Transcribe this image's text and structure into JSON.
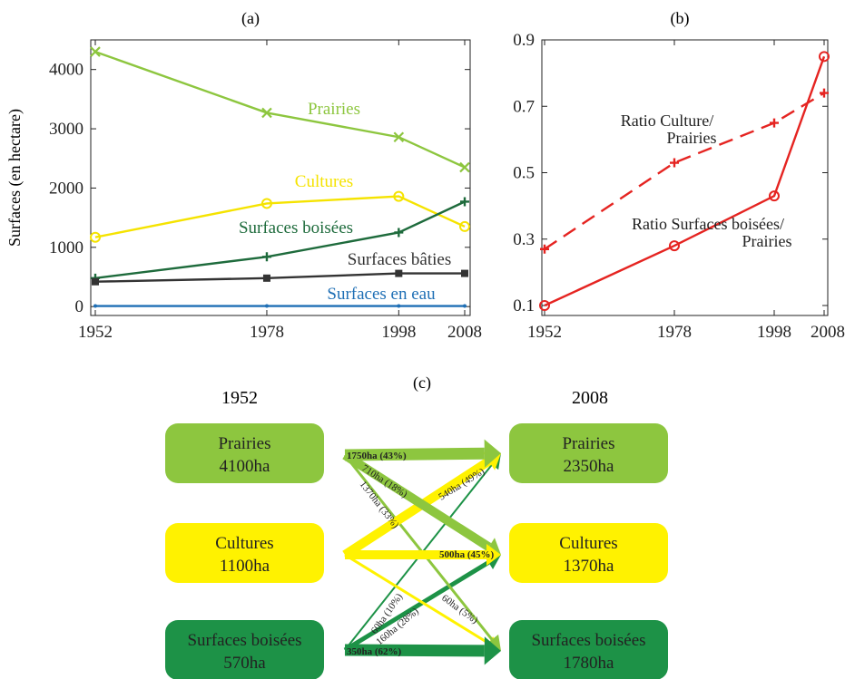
{
  "chart_data": [
    {
      "panel": "(a)",
      "type": "line",
      "ylabel": "Surfaces (en hectare)",
      "x": [
        1952,
        1978,
        1998,
        2008
      ],
      "xticks": [
        "1952",
        "1978",
        "1998",
        "2008"
      ],
      "yticks": [
        "0",
        "1000",
        "2000",
        "3000",
        "4000"
      ],
      "xlim": [
        1952,
        2008
      ],
      "ylim": [
        -150,
        4500
      ],
      "series": [
        {
          "name": "Prairies",
          "color": "#8dc63f",
          "marker": "x",
          "values": [
            4300,
            3270,
            2860,
            2350
          ]
        },
        {
          "name": "Cultures",
          "color": "#f5e300",
          "marker": "o",
          "values": [
            1170,
            1740,
            1860,
            1350
          ]
        },
        {
          "name": "Surfaces boisées",
          "color": "#1e6b3c",
          "marker": "+",
          "values": [
            480,
            840,
            1250,
            1770
          ]
        },
        {
          "name": "Surfaces bâties",
          "color": "#333333",
          "marker": "s",
          "values": [
            420,
            480,
            560,
            560
          ]
        },
        {
          "name": "Surfaces en eau",
          "color": "#1f6fb5",
          "marker": ".",
          "values": [
            10,
            10,
            10,
            10
          ]
        }
      ]
    },
    {
      "panel": "(b)",
      "type": "line",
      "x": [
        1952,
        1978,
        1998,
        2008
      ],
      "xticks": [
        "1952",
        "1978",
        "1998",
        "2008"
      ],
      "yticks": [
        "0.1",
        "0.3",
        "0.5",
        "0.7",
        "0.9"
      ],
      "xlim": [
        1952,
        2008
      ],
      "ylim": [
        0.07,
        0.9
      ],
      "series": [
        {
          "name": "Ratio Culture/ Prairies",
          "label_lines": [
            "Ratio Culture/",
            "Prairies"
          ],
          "color": "#e52421",
          "dash": true,
          "marker": "+",
          "values": [
            0.27,
            0.53,
            0.65,
            0.74
          ]
        },
        {
          "name": "Ratio Surfaces boisées/ Prairies",
          "label_lines": [
            "Ratio Surfaces boisées/",
            "Prairies"
          ],
          "color": "#e52421",
          "dash": false,
          "marker": "o",
          "values": [
            0.1,
            0.28,
            0.43,
            0.85
          ]
        }
      ]
    },
    {
      "panel": "(c)",
      "type": "diagram",
      "left_year": "1952",
      "right_year": "2008",
      "left_boxes": [
        {
          "name": "Prairies",
          "value": "4100ha",
          "color": "#8dc63f"
        },
        {
          "name": "Cultures",
          "value": "1100ha",
          "color": "#fff200"
        },
        {
          "name": "Surfaces boisées",
          "value": "570ha",
          "color": "#1d9247"
        }
      ],
      "right_boxes": [
        {
          "name": "Prairies",
          "value": "2350ha",
          "color": "#8dc63f"
        },
        {
          "name": "Cultures",
          "value": "1370ha",
          "color": "#fff200"
        },
        {
          "name": "Surfaces boisées",
          "value": "1780ha",
          "color": "#1d9247"
        }
      ],
      "flows": [
        {
          "from": 0,
          "to": 0,
          "label": "1750ha (43%)",
          "color": "#8dc63f",
          "bold": true
        },
        {
          "from": 0,
          "to": 1,
          "label": "710ha (18%)",
          "color": "#8dc63f",
          "bold": false
        },
        {
          "from": 0,
          "to": 2,
          "label": "1370ha (33%)",
          "color": "#8dc63f",
          "bold": false
        },
        {
          "from": 1,
          "to": 0,
          "label": "540ha (49%)",
          "color": "#fff200",
          "bold": false
        },
        {
          "from": 1,
          "to": 1,
          "label": "500ha (45%)",
          "color": "#fff200",
          "bold": true
        },
        {
          "from": 1,
          "to": 2,
          "label": "60ha (5%)",
          "color": "#fff200",
          "bold": false
        },
        {
          "from": 2,
          "to": 0,
          "label": "60ha (10%)",
          "color": "#1d9247",
          "bold": false
        },
        {
          "from": 2,
          "to": 1,
          "label": "160ha (28%)",
          "color": "#1d9247",
          "bold": false
        },
        {
          "from": 2,
          "to": 2,
          "label": "350ha (62%)",
          "color": "#1d9247",
          "bold": true
        }
      ]
    }
  ]
}
